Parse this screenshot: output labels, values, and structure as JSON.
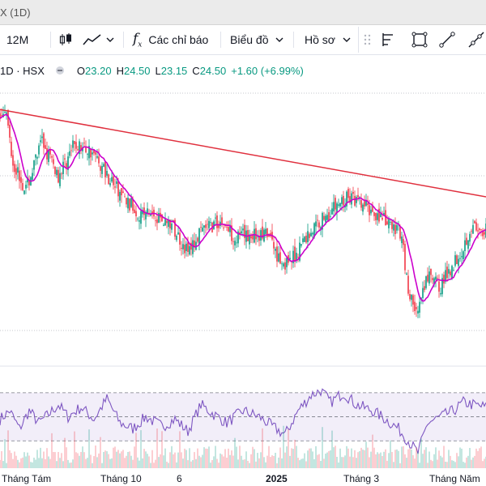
{
  "window": {
    "title": "X (1D)"
  },
  "toolbar": {
    "interval": "12M",
    "indicators_label": "Các chỉ báo",
    "chart_type_label": "Biểu đồ",
    "profile_label": "Hồ sơ"
  },
  "legend": {
    "symbol": "1D · HSX",
    "open_label": "O",
    "open": "23.20",
    "high_label": "H",
    "high": "24.50",
    "low_label": "L",
    "low": "23.15",
    "close_label": "C",
    "close": "24.50",
    "change": "+1.60 (+6.99%)"
  },
  "colors": {
    "up": "#089981",
    "down": "#f23645",
    "ma": "#cc00cc",
    "trend": "#e0303e",
    "rsi": "#7e57c2"
  },
  "xaxis": {
    "labels": [
      "Tháng Tám",
      "Tháng 10",
      "6",
      "2025",
      "Tháng 3",
      "Tháng Năm"
    ]
  },
  "chart_data": {
    "type": "candlestick",
    "title": "",
    "last_close": 24.5,
    "pivots": [
      [
        0,
        30.6
      ],
      [
        3,
        31.2
      ],
      [
        8,
        28.0
      ],
      [
        16,
        26.4
      ],
      [
        26,
        29.1
      ],
      [
        36,
        27.2
      ],
      [
        46,
        28.9
      ],
      [
        56,
        28.6
      ],
      [
        66,
        27.3
      ],
      [
        76,
        25.9
      ],
      [
        86,
        25.1
      ],
      [
        96,
        25.0
      ],
      [
        106,
        24.4
      ],
      [
        116,
        22.9
      ],
      [
        126,
        24.2
      ],
      [
        136,
        24.6
      ],
      [
        146,
        23.7
      ],
      [
        156,
        23.9
      ],
      [
        166,
        23.8
      ],
      [
        172,
        22.6
      ],
      [
        178,
        22.1
      ],
      [
        186,
        23.4
      ],
      [
        196,
        24.5
      ],
      [
        206,
        25.4
      ],
      [
        216,
        26.0
      ],
      [
        222,
        25.6
      ],
      [
        232,
        25.1
      ],
      [
        240,
        24.4
      ],
      [
        248,
        24.0
      ],
      [
        252,
        20.6
      ],
      [
        258,
        19.5
      ],
      [
        264,
        21.5
      ],
      [
        272,
        21.0
      ],
      [
        280,
        22.3
      ],
      [
        286,
        23.2
      ],
      [
        291,
        24.4
      ],
      [
        295,
        24.0
      ],
      [
        300,
        23.4
      ]
    ],
    "rsi_pivots": [
      [
        0,
        48
      ],
      [
        6,
        55
      ],
      [
        12,
        40
      ],
      [
        18,
        55
      ],
      [
        24,
        45
      ],
      [
        30,
        52
      ],
      [
        36,
        60
      ],
      [
        42,
        50
      ],
      [
        50,
        58
      ],
      [
        58,
        48
      ],
      [
        66,
        65
      ],
      [
        74,
        45
      ],
      [
        82,
        40
      ],
      [
        90,
        50
      ],
      [
        100,
        42
      ],
      [
        108,
        48
      ],
      [
        116,
        38
      ],
      [
        124,
        60
      ],
      [
        132,
        52
      ],
      [
        140,
        45
      ],
      [
        150,
        55
      ],
      [
        160,
        50
      ],
      [
        168,
        42
      ],
      [
        176,
        35
      ],
      [
        184,
        55
      ],
      [
        192,
        68
      ],
      [
        198,
        72
      ],
      [
        204,
        62
      ],
      [
        212,
        70
      ],
      [
        220,
        60
      ],
      [
        230,
        55
      ],
      [
        238,
        48
      ],
      [
        246,
        40
      ],
      [
        252,
        30
      ],
      [
        258,
        20
      ],
      [
        264,
        45
      ],
      [
        272,
        50
      ],
      [
        280,
        55
      ],
      [
        286,
        62
      ],
      [
        292,
        60
      ],
      [
        300,
        58
      ]
    ]
  }
}
